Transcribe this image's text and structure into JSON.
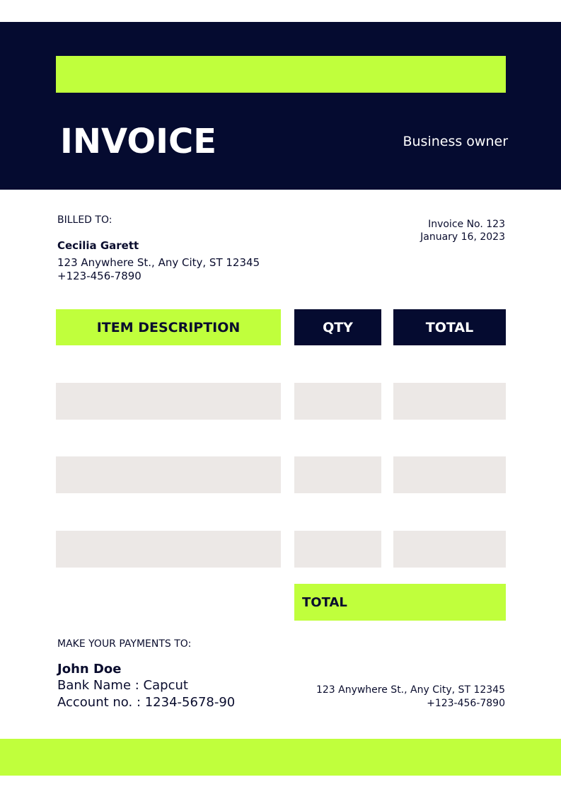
{
  "header": {
    "title": "INVOICE",
    "subtitle": "Business owner"
  },
  "billing": {
    "label": "BILLED TO:",
    "name": "Cecilia Garett",
    "address": "123 Anywhere St., Any City, ST 12345",
    "phone": "+123-456-7890"
  },
  "invoice": {
    "number": "Invoice No. 123",
    "date": "January 16, 2023"
  },
  "table": {
    "columns": [
      "ITEM DESCRIPTION",
      "QTY",
      "TOTAL"
    ],
    "rows": [
      [
        "",
        "",
        ""
      ],
      [
        "",
        "",
        ""
      ],
      [
        "",
        "",
        ""
      ]
    ],
    "total_label": "TOTAL"
  },
  "payment": {
    "label": "MAKE YOUR PAYMENTS TO:",
    "name": "John Doe",
    "bank": "Bank Name : Capcut",
    "account": "Account no. : 1234-5678-90",
    "address": "123 Anywhere St., Any City, ST 12345",
    "phone": "+123-456-7890"
  },
  "colors": {
    "navy": "#050b30",
    "lime": "#c0ff3c",
    "row_gray": "#ece8e6"
  }
}
